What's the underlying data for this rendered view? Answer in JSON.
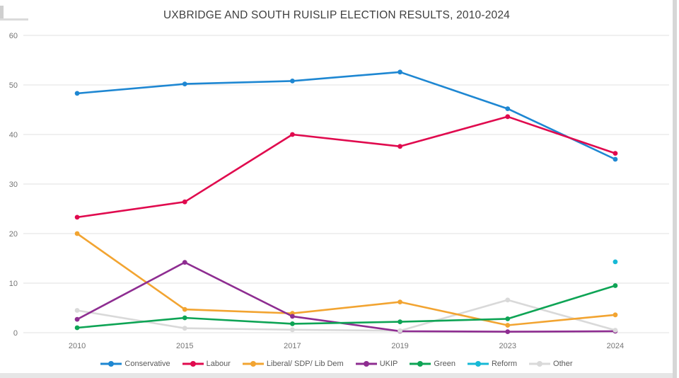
{
  "chart_data": {
    "type": "line",
    "title": "UXBRIDGE AND SOUTH RUISLIP ELECTION RESULTS, 2010-2024",
    "categories": [
      "2010",
      "2015",
      "2017",
      "2019",
      "2023",
      "2024"
    ],
    "series": [
      {
        "name": "Conservative",
        "color": "#1E87D2",
        "values": [
          48.3,
          50.2,
          50.8,
          52.6,
          45.2,
          35.0
        ]
      },
      {
        "name": "Labour",
        "color": "#E00A4E",
        "values": [
          23.3,
          26.4,
          40.0,
          37.6,
          43.6,
          36.2
        ]
      },
      {
        "name": "Liberal/ SDP/ Lib Dem",
        "color": "#F2A431",
        "values": [
          20.0,
          4.7,
          3.9,
          6.2,
          1.5,
          3.6
        ]
      },
      {
        "name": "UKIP",
        "color": "#8E2D91",
        "values": [
          2.7,
          14.2,
          3.3,
          0.3,
          0.2,
          0.3
        ]
      },
      {
        "name": "Green",
        "color": "#0EA455",
        "values": [
          1.0,
          3.0,
          1.8,
          2.2,
          2.8,
          9.5
        ]
      },
      {
        "name": "Reform",
        "color": "#17B9D6",
        "values": [
          null,
          null,
          null,
          null,
          null,
          14.3
        ]
      },
      {
        "name": "Other",
        "color": "#D9D9D9",
        "values": [
          4.5,
          0.9,
          0.6,
          0.4,
          6.6,
          0.5
        ]
      }
    ],
    "xlabel": "",
    "ylabel": "",
    "ylim": [
      0,
      60
    ],
    "yticks": [
      0,
      10,
      20,
      30,
      40,
      50,
      60
    ],
    "grid": true,
    "legend_position": "bottom",
    "grid_color": "#e2e2e2",
    "axis_color": "#757575",
    "title_color": "#3f3f3f"
  }
}
